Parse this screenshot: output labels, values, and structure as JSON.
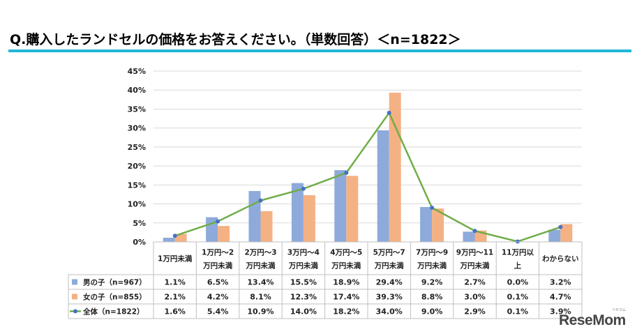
{
  "page": {
    "title": "Q.購入したランドセルの価格をお答えください。（単数回答）＜n=1822＞",
    "accent_color": "#20b8d6"
  },
  "logo": {
    "text": "ReseMom",
    "sub": "リセマム"
  },
  "chart_data": {
    "type": "bar",
    "title": "",
    "xlabel": "",
    "ylabel": "",
    "ylim": [
      0,
      45
    ],
    "yticks": [
      "0%",
      "5%",
      "10%",
      "15%",
      "20%",
      "25%",
      "30%",
      "35%",
      "40%",
      "45%"
    ],
    "grid": true,
    "categories": [
      [
        "1万円未満"
      ],
      [
        "1万円～2",
        "万円未満"
      ],
      [
        "2万円～3",
        "万円未満"
      ],
      [
        "3万円～4",
        "万円未満"
      ],
      [
        "4万円～5",
        "万円未満"
      ],
      [
        "5万円～7",
        "万円未満"
      ],
      [
        "7万円～9",
        "万円未満"
      ],
      [
        "9万円～11",
        "万円未満"
      ],
      [
        "11万円以",
        "上"
      ],
      [
        "わからない"
      ]
    ],
    "series": [
      {
        "name": "男の子（n=967）",
        "type": "bar",
        "color": "#8eaadb",
        "values": [
          1.1,
          6.5,
          13.4,
          15.5,
          18.9,
          29.4,
          9.2,
          2.7,
          0.0,
          3.2
        ],
        "labels": [
          "1.1%",
          "6.5%",
          "13.4%",
          "15.5%",
          "18.9%",
          "29.4%",
          "9.2%",
          "2.7%",
          "0.0%",
          "3.2%"
        ]
      },
      {
        "name": "女の子（n=855）",
        "type": "bar",
        "color": "#f4b183",
        "values": [
          2.1,
          4.2,
          8.1,
          12.3,
          17.4,
          39.3,
          8.8,
          3.0,
          0.1,
          4.7
        ],
        "labels": [
          "2.1%",
          "4.2%",
          "8.1%",
          "12.3%",
          "17.4%",
          "39.3%",
          "8.8%",
          "3.0%",
          "0.1%",
          "4.7%"
        ]
      },
      {
        "name": "全体（n=1822）",
        "type": "line",
        "color": "#70ad47",
        "marker_color": "#4472c4",
        "values": [
          1.6,
          5.4,
          10.9,
          14.0,
          18.2,
          34.0,
          9.0,
          2.9,
          0.1,
          3.9
        ],
        "labels": [
          "1.6%",
          "5.4%",
          "10.9%",
          "14.0%",
          "18.2%",
          "34.0%",
          "9.0%",
          "2.9%",
          "0.1%",
          "3.9%"
        ]
      }
    ]
  }
}
